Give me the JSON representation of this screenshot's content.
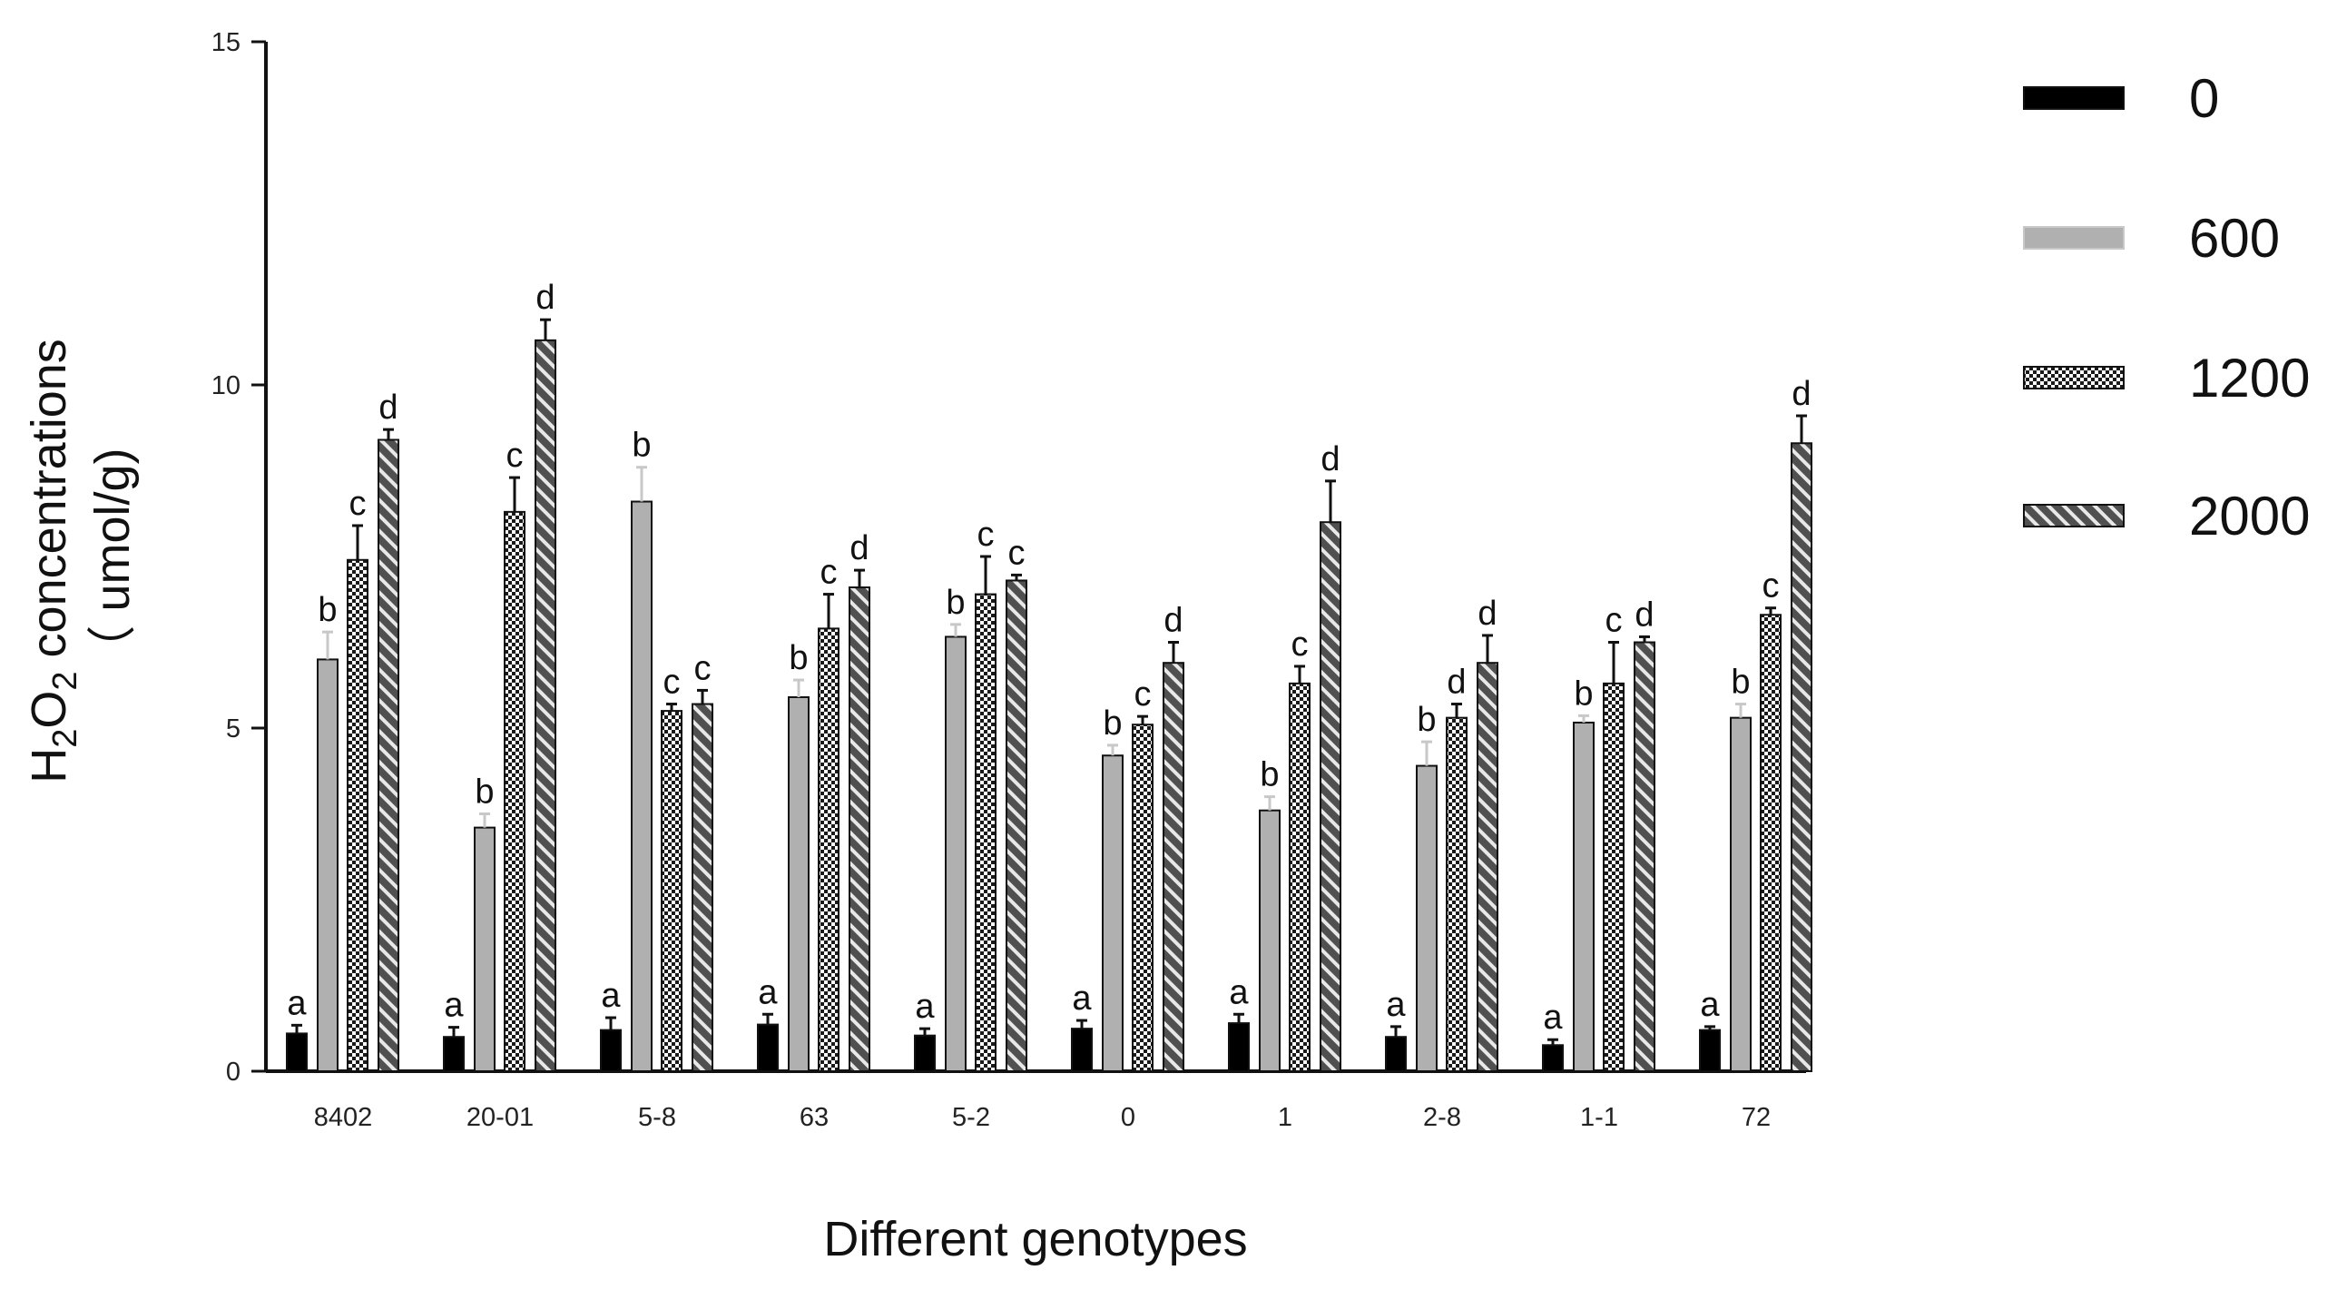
{
  "chart_data": {
    "type": "bar",
    "title": "",
    "xlabel": "Different genotypes",
    "ylabel_parts": [
      "H",
      "2",
      "O",
      "2",
      " concentrations"
    ],
    "ylabel_unit": "（ umol/g)",
    "ylim": [
      0,
      15
    ],
    "yticks": [
      "0",
      "5",
      "10",
      "15"
    ],
    "legend_position": "right",
    "categories": [
      "8402",
      "20-01",
      "5-8",
      "63",
      "5-2",
      "0",
      "1",
      "2-8",
      "1-1",
      "72"
    ],
    "series": [
      {
        "name": "0",
        "pattern": "solid-black",
        "color": "#000000",
        "values": [
          0.55,
          0.5,
          0.6,
          0.68,
          0.52,
          0.62,
          0.7,
          0.5,
          0.38,
          0.6
        ],
        "errors": [
          0.12,
          0.14,
          0.18,
          0.15,
          0.1,
          0.12,
          0.13,
          0.15,
          0.08,
          0.05
        ],
        "labels": [
          "a",
          "a",
          "a",
          "a",
          "a",
          "a",
          "a",
          "a",
          "a",
          "a"
        ]
      },
      {
        "name": "600",
        "pattern": "solid-gray",
        "color": "#b0b0b0",
        "values": [
          6.0,
          3.55,
          8.3,
          5.45,
          6.33,
          4.6,
          3.8,
          4.45,
          5.08,
          5.15
        ],
        "errors": [
          0.4,
          0.2,
          0.5,
          0.25,
          0.18,
          0.15,
          0.2,
          0.35,
          0.1,
          0.2
        ],
        "labels": [
          "b",
          "b",
          "b",
          "b",
          "b",
          "b",
          "b",
          "b",
          "b",
          "b"
        ]
      },
      {
        "name": "1200",
        "pattern": "checker",
        "color": "#222222",
        "values": [
          7.45,
          8.15,
          5.25,
          6.45,
          6.95,
          5.05,
          5.65,
          5.15,
          5.65,
          6.65
        ],
        "errors": [
          0.5,
          0.5,
          0.1,
          0.5,
          0.55,
          0.12,
          0.25,
          0.2,
          0.6,
          0.1
        ],
        "labels": [
          "c",
          "c",
          "c",
          "c",
          "c",
          "c",
          "c",
          "d",
          "c",
          "c"
        ]
      },
      {
        "name": "2000",
        "pattern": "hatch",
        "color": "#555555",
        "values": [
          9.2,
          10.65,
          5.35,
          7.05,
          7.15,
          5.95,
          8.0,
          5.95,
          6.25,
          9.15
        ],
        "errors": [
          0.15,
          0.3,
          0.2,
          0.25,
          0.08,
          0.3,
          0.6,
          0.4,
          0.08,
          0.4
        ],
        "labels": [
          "d",
          "d",
          "c",
          "d",
          "c",
          "d",
          "d",
          "d",
          "d",
          "d"
        ]
      }
    ]
  }
}
